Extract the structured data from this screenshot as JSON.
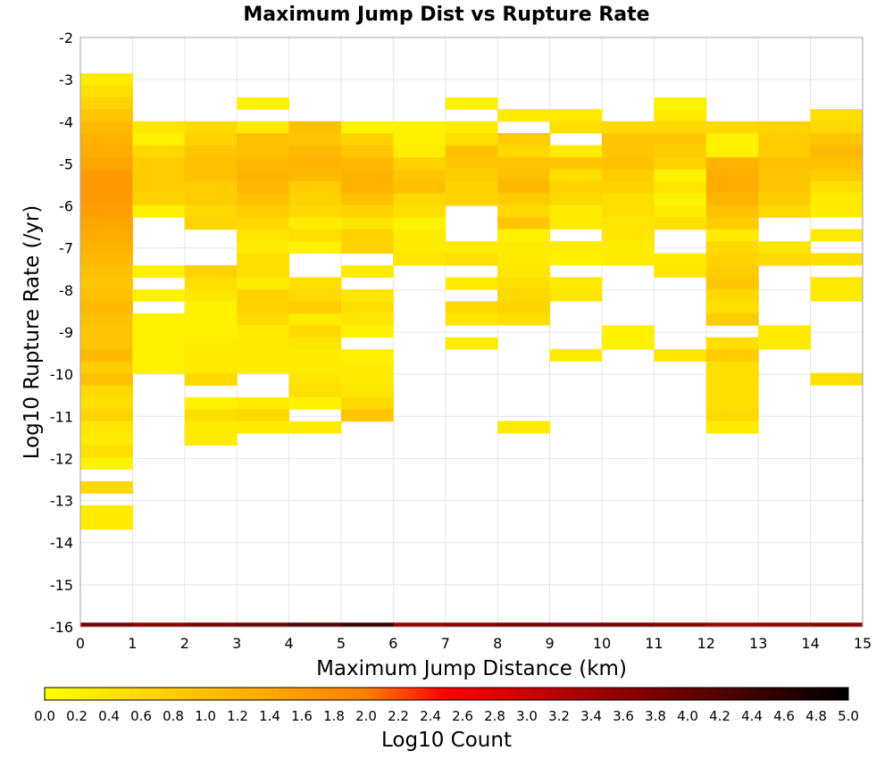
{
  "chart_data": {
    "type": "heatmap",
    "title": "Maximum Jump Dist vs Rupture Rate",
    "xlabel": "Maximum Jump Distance (km)",
    "ylabel": "Log10 Rupture Rate (/yr)",
    "xlim": [
      0,
      15
    ],
    "ylim": [
      -16,
      -2
    ],
    "x_ticks": [
      0,
      1,
      2,
      3,
      4,
      5,
      6,
      7,
      8,
      9,
      10,
      11,
      12,
      13,
      14,
      15
    ],
    "y_ticks": [
      -2,
      -3,
      -4,
      -5,
      -6,
      -7,
      -8,
      -9,
      -10,
      -11,
      -12,
      -13,
      -14,
      -15,
      -16
    ],
    "x_bin_width": 1,
    "y_bin_height": 0.285,
    "grid": true,
    "colorbar": {
      "label": "Log10 Count",
      "range": [
        0,
        5
      ],
      "ticks": [
        "0.0",
        "0.2",
        "0.4",
        "0.6",
        "0.8",
        "1.0",
        "1.2",
        "1.4",
        "1.6",
        "1.8",
        "2.0",
        "2.2",
        "2.4",
        "2.6",
        "2.8",
        "3.0",
        "3.2",
        "3.4",
        "3.6",
        "3.8",
        "4.0",
        "4.2",
        "4.4",
        "4.6",
        "4.8",
        "5.0"
      ],
      "stops": [
        "#ffff00",
        "#ff8000",
        "#ff0000",
        "#000000"
      ]
    },
    "columns": [
      {
        "x": 0,
        "y_start": -2.85,
        "values": [
          0.3,
          0.5,
          0.7,
          0.9,
          1.1,
          1.2,
          1.3,
          1.4,
          1.6,
          1.6,
          1.6,
          1.5,
          1.4,
          1.3,
          1.2,
          1.1,
          1.0,
          0.9,
          1.0,
          1.1,
          1.0,
          0.9,
          0.9,
          1.1,
          0.8,
          1.0,
          0.6,
          0.5,
          0.7,
          0.4,
          0.3,
          0.5,
          0.2,
          null,
          0.6,
          null,
          0.3,
          0.3
        ]
      },
      {
        "x": 1,
        "y_start": -3.99,
        "values": [
          0.4,
          0.2,
          0.6,
          0.8,
          0.8,
          0.8,
          0.7,
          0.2,
          null,
          null,
          null,
          null,
          0.2,
          null,
          0.2,
          null,
          0.2,
          0.2,
          0.2,
          0.2,
          0.2
        ]
      },
      {
        "x": 2,
        "y_start": -3.99,
        "values": [
          0.6,
          0.7,
          0.9,
          1.0,
          1.0,
          0.8,
          0.8,
          0.6,
          0.7,
          null,
          null,
          null,
          0.7,
          0.5,
          0.4,
          0.2,
          0.2,
          0.2,
          0.3,
          0.3,
          0.3,
          0.6,
          null,
          0.2,
          0.5,
          0.3,
          0.3
        ]
      },
      {
        "x": 3,
        "y_start": -3.42,
        "values": [
          0.2,
          null,
          0.3,
          1.0,
          1.0,
          1.1,
          1.2,
          1.1,
          1.0,
          0.8,
          0.6,
          0.4,
          0.3,
          0.5,
          0.5,
          0.3,
          0.7,
          0.7,
          0.6,
          0.3,
          0.3,
          0.3,
          0.3,
          null,
          null,
          0.3,
          0.6,
          0.3
        ]
      },
      {
        "x": 4,
        "y_start": -3.99,
        "values": [
          1.0,
          0.9,
          1.1,
          1.2,
          1.1,
          0.8,
          0.7,
          0.6,
          0.3,
          0.5,
          0.2,
          null,
          null,
          0.5,
          0.6,
          0.8,
          0.3,
          0.6,
          0.4,
          0.3,
          0.3,
          0.4,
          0.5,
          0.2,
          null,
          0.3
        ]
      },
      {
        "x": 5,
        "y_start": -3.99,
        "values": [
          0.2,
          0.7,
          0.9,
          1.1,
          1.2,
          1.2,
          1.0,
          0.7,
          0.4,
          0.7,
          0.7,
          null,
          0.3,
          null,
          0.4,
          0.5,
          0.4,
          0.2,
          null,
          0.2,
          0.3,
          0.3,
          0.4,
          0.6,
          0.9
        ]
      },
      {
        "x": 6,
        "y_start": -3.99,
        "values": [
          0.2,
          0.2,
          0.3,
          0.7,
          0.9,
          1.0,
          0.6,
          0.5,
          0.2,
          0.3,
          0.3,
          0.4
        ]
      },
      {
        "x": 7,
        "y_start": -3.42,
        "values": [
          0.2,
          null,
          0.3,
          0.5,
          1.0,
          0.9,
          0.8,
          0.7,
          0.7,
          null,
          null,
          null,
          0.3,
          0.5,
          null,
          0.3,
          null,
          0.6,
          0.4,
          null,
          0.3
        ]
      },
      {
        "x": 8,
        "y_start": -3.7,
        "values": [
          0.3,
          null,
          0.8,
          0.6,
          0.9,
          1.0,
          1.1,
          0.8,
          0.6,
          0.9,
          0.2,
          0.3,
          0.3,
          0.4,
          0.5,
          0.6,
          0.7,
          0.5,
          null,
          null,
          null,
          null,
          null,
          null,
          null,
          null,
          0.3
        ]
      },
      {
        "x": 9,
        "y_start": -3.7,
        "values": [
          0.3,
          0.5,
          null,
          0.3,
          0.9,
          0.5,
          0.7,
          0.6,
          0.3,
          0.3,
          null,
          0.3,
          0.2,
          null,
          0.3,
          0.4,
          null,
          null,
          null,
          null,
          0.3
        ]
      },
      {
        "x": 10,
        "y_start": -3.99,
        "values": [
          0.6,
          0.9,
          0.9,
          1.0,
          0.8,
          0.7,
          0.5,
          0.5,
          0.4,
          0.4,
          0.3,
          0.3,
          null,
          null,
          null,
          null,
          null,
          0.2,
          0.2
        ]
      },
      {
        "x": 11,
        "y_start": -3.42,
        "values": [
          0.2,
          0.3,
          0.6,
          0.9,
          0.8,
          0.7,
          0.2,
          0.4,
          0.2,
          0.3,
          0.5,
          null,
          null,
          0.3,
          0.4,
          null,
          null,
          null,
          null,
          null,
          null,
          0.4
        ]
      },
      {
        "x": 12,
        "y_start": -3.99,
        "values": [
          0.6,
          0.2,
          0.2,
          1.2,
          1.3,
          1.3,
          1.2,
          1.0,
          0.8,
          0.3,
          0.6,
          0.7,
          0.8,
          0.9,
          0.6,
          0.5,
          0.8,
          null,
          0.5,
          0.8,
          0.5,
          0.5,
          0.5,
          0.5,
          0.6,
          0.3
        ]
      },
      {
        "x": 13,
        "y_start": -3.99,
        "values": [
          0.7,
          0.8,
          0.8,
          1.0,
          0.9,
          0.9,
          0.8,
          0.6,
          null,
          null,
          0.4,
          0.6,
          null,
          null,
          null,
          null,
          null,
          0.3,
          0.3
        ]
      },
      {
        "x": 14,
        "y_start": -3.7,
        "values": [
          0.5,
          0.6,
          0.9,
          1.1,
          1.0,
          0.8,
          0.5,
          0.3,
          0.3,
          null,
          0.3,
          null,
          0.5,
          null,
          0.3,
          0.3,
          null,
          null,
          null,
          null,
          null,
          null,
          0.5
        ]
      }
    ],
    "bottom_row": {
      "y": -15.9,
      "values": [
        3.9,
        3.6,
        3.8,
        4.0,
        4.2,
        4.4,
        3.5,
        3.7,
        3.8,
        3.9,
        3.8,
        3.6,
        3.4,
        3.5,
        3.6
      ]
    }
  }
}
